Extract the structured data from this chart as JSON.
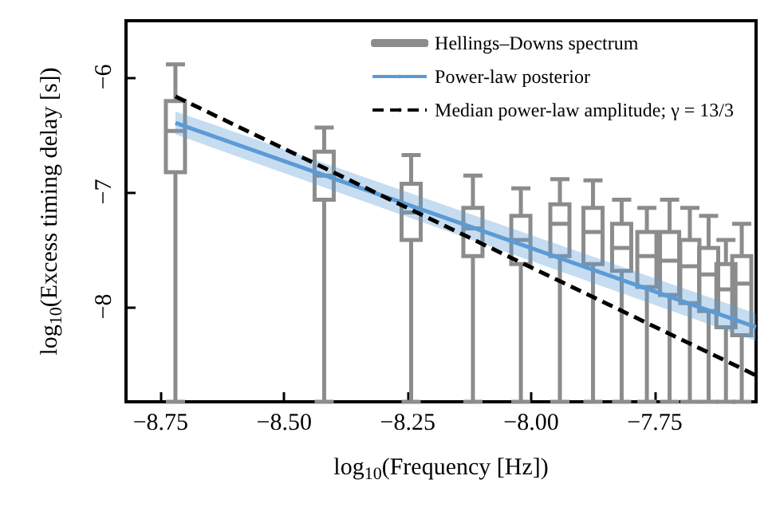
{
  "chart_data": {
    "type": "line",
    "xlabel": "log$_{10}$(Frequency [Hz])",
    "ylabel": "log$_{10}$(Excess timing delay [s])",
    "xlim": [
      -8.82,
      -7.545
    ],
    "ylim": [
      -8.83,
      -5.51
    ],
    "xticks": [
      {
        "value": -8.75,
        "label": "−8.75"
      },
      {
        "value": -8.5,
        "label": "−8.50"
      },
      {
        "value": -8.25,
        "label": "−8.25"
      },
      {
        "value": -8,
        "label": "−8.00"
      },
      {
        "value": -7.75,
        "label": "−7.75"
      }
    ],
    "yticks": [
      {
        "value": -6,
        "label": "−6"
      },
      {
        "value": -7,
        "label": "−7"
      },
      {
        "value": -8,
        "label": "−8"
      }
    ],
    "grid": false,
    "legend": "top right",
    "marker": "none",
    "series": [
      {
        "name": "Hellings–Downs spectrum",
        "type": "box",
        "color": "#8c8c8c",
        "x": [
          -8.72,
          -8.419,
          -8.243,
          -8.118,
          -8.021,
          -7.942,
          -7.875,
          -7.817,
          -7.766,
          -7.72,
          -7.679,
          -7.641,
          -7.606,
          -7.574
        ],
        "boxes": [
          {
            "low": -8.83,
            "q1": -6.83,
            "median": -6.47,
            "q3": -6.21,
            "high": -5.89
          },
          {
            "low": -8.83,
            "q1": -7.07,
            "median": -6.86,
            "q3": -6.65,
            "high": -6.44
          },
          {
            "low": -8.83,
            "q1": -7.42,
            "median": -7.18,
            "q3": -6.93,
            "high": -6.68
          },
          {
            "low": -8.83,
            "q1": -7.56,
            "median": -7.32,
            "q3": -7.14,
            "high": -6.86
          },
          {
            "low": -8.83,
            "q1": -7.63,
            "median": -7.42,
            "q3": -7.21,
            "high": -6.97
          },
          {
            "low": -8.83,
            "q1": -7.56,
            "median": -7.28,
            "q3": -7.11,
            "high": -6.89
          },
          {
            "low": -8.83,
            "q1": -7.63,
            "median": -7.35,
            "q3": -7.14,
            "high": -6.9
          },
          {
            "low": -8.83,
            "q1": -7.69,
            "median": -7.49,
            "q3": -7.28,
            "high": -7.07
          },
          {
            "low": -8.83,
            "q1": -7.83,
            "median": -7.56,
            "q3": -7.35,
            "high": -7.14
          },
          {
            "low": -8.83,
            "q1": -7.9,
            "median": -7.6,
            "q3": -7.35,
            "high": -7.07
          },
          {
            "low": -8.83,
            "q1": -7.97,
            "median": -7.65,
            "q3": -7.42,
            "high": -7.14
          },
          {
            "low": -8.83,
            "q1": -8.04,
            "median": -7.72,
            "q3": -7.49,
            "high": -7.21
          },
          {
            "low": -8.83,
            "q1": -8.18,
            "median": -7.85,
            "q3": -7.63,
            "high": -7.42
          },
          {
            "low": -8.83,
            "q1": -8.25,
            "median": -7.8,
            "q3": -7.56,
            "high": -7.28
          }
        ]
      },
      {
        "name": "Power-law posterior",
        "color": "#5b9bd5",
        "x": [
          -8.72,
          -7.545
        ],
        "values": [
          -6.4,
          -8.18
        ],
        "lower": [
          -6.5,
          -8.3
        ],
        "upper": [
          -6.3,
          -8.06
        ]
      },
      {
        "name": "Median power-law amplitude; γ = 13/3",
        "color": "#000000",
        "line_style": "dashed",
        "x": [
          -8.72,
          -7.545
        ],
        "values": [
          -6.17,
          -8.6
        ]
      }
    ]
  }
}
